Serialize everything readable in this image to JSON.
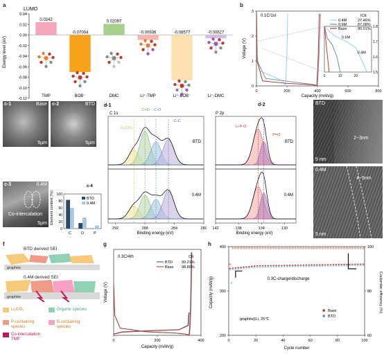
{
  "panel_labels": {
    "a": "a",
    "b": "b",
    "c1": "c-1",
    "c2": "c-2",
    "c3": "c-3",
    "c4": "c-4",
    "d1": "d-1",
    "d2": "d-2",
    "e": "e",
    "f": "f",
    "g": "g",
    "h": "h"
  },
  "chart_data": [
    {
      "id": "a",
      "type": "bar",
      "title": "LUMO",
      "ylabel": "Energy level (eV)",
      "categories": [
        "TMP",
        "BOB⁻",
        "DMC",
        "Li⁺-TMP",
        "Li⁺-BOB⁻",
        "Li⁺-DMC"
      ],
      "values": [
        0.0242,
        -0.07004,
        0.02097,
        -0.00936,
        -0.08577,
        -0.00627
      ],
      "value_labels": [
        "0.0242",
        "-0.07004",
        "0.02097",
        "-0.00936",
        "-0.08577",
        "-0.00627"
      ],
      "colors": [
        "#f4a6bd",
        "#f7a21b",
        "#a7d08c",
        "#f5b7b1",
        "#fce1b0",
        "#d7bde2"
      ],
      "ylim": [
        -0.12,
        0.04
      ],
      "yticks": [
        "0.04",
        "0.02",
        "0.00",
        "-0.02",
        "-0.04",
        "-0.06",
        "-0.08",
        "-0.10",
        "-0.12"
      ]
    },
    {
      "id": "b",
      "type": "line",
      "title": "0.1C/1st",
      "xlabel": "Capacity (mAh/g)",
      "ylabel": "Voltage (V)",
      "xlim": [
        0,
        800
      ],
      "ylim": [
        0,
        3
      ],
      "xticks": [
        "0",
        "200",
        "400",
        "600",
        "800"
      ],
      "yticks": [
        "0",
        "1",
        "2",
        "3"
      ],
      "legend_title": "ICE",
      "series": [
        {
          "name": "0.4M",
          "ice": "27.46%",
          "color": "#9fd0e5"
        },
        {
          "name": "0.6M",
          "ice": "87.08%",
          "color": "#6e8fa8"
        },
        {
          "name": "Base",
          "ice": "90.01%",
          "color": "#c0392b"
        }
      ],
      "inset": {
        "xlim": [
          0,
          30
        ],
        "ylim": [
          1.5,
          1.8
        ],
        "xticks": [
          "0",
          "10",
          "20"
        ],
        "yticks": [
          "1.5",
          "1.6",
          "1.7",
          "1.8"
        ],
        "annotations": [
          "0.6M",
          "0.4M"
        ]
      }
    },
    {
      "id": "c4",
      "type": "bar",
      "xlabel": "",
      "ylabel": "Element content (%)",
      "categories": [
        "C",
        "O",
        "P"
      ],
      "series": [
        {
          "name": "BTD",
          "values": [
            83,
            16,
            0
          ],
          "color": "#2e4a62"
        },
        {
          "name": "0.4M",
          "values": [
            60,
            32,
            9
          ],
          "color": "#a9c7de"
        }
      ],
      "ylim": [
        0,
        100
      ],
      "yticks": [
        "0",
        "20",
        "40",
        "60",
        "80",
        "100"
      ]
    },
    {
      "id": "d1",
      "type": "line",
      "title": "C 1s",
      "xlabel": "Binding energy (eV)",
      "xlim": [
        292,
        280
      ],
      "xticks": [
        "292",
        "288",
        "284",
        "280"
      ],
      "peaks": [
        "Li₂CO₃",
        "C=O",
        "C-O",
        "C-C"
      ],
      "samples": [
        "BTD",
        "0.4M"
      ]
    },
    {
      "id": "d2",
      "type": "line",
      "title": "P 2p",
      "xlabel": "Binding energy (eV)",
      "xlim": [
        142,
        130
      ],
      "xticks": [
        "142",
        "138",
        "134",
        "130"
      ],
      "peaks": [
        "Li-P-O",
        "P=O"
      ],
      "samples": [
        "BTD",
        "0.4M"
      ]
    },
    {
      "id": "g",
      "type": "line",
      "title": "0.3C/4th",
      "xlabel": "Capacity (mAh/g)",
      "ylabel": "Voltage (V)",
      "xlim": [
        0,
        400
      ],
      "xticks": [
        "0",
        "200",
        "400"
      ],
      "legend_title": "CE",
      "series": [
        {
          "name": "BTD",
          "ce": "99.21%",
          "color": "#2e5f8a"
        },
        {
          "name": "Base",
          "ce": "98.86%",
          "color": "#c0392b"
        }
      ]
    },
    {
      "id": "h",
      "type": "scatter",
      "xlabel": "Cycle number",
      "ylabel": "Capacity (mAh/g)",
      "ylabel2": "Coulombic efficiency (%)",
      "xlim": [
        0,
        100
      ],
      "ylim": [
        200,
        400
      ],
      "ylim2": [
        60,
        100
      ],
      "xticks": [
        "0",
        "20",
        "40",
        "60",
        "80",
        "100"
      ],
      "yticks": [
        "200",
        "300",
        "400"
      ],
      "yticks2": [
        "60",
        "80",
        "100"
      ],
      "annotation": "0.3C-charge/discharge",
      "note": "graphite||Li, 25℃",
      "series": [
        {
          "name": "Base",
          "color": "#c0392b"
        },
        {
          "name": "BTD",
          "color": "#5b8db8"
        }
      ]
    }
  ],
  "c_images": {
    "c1": "Base",
    "c2": "BTD",
    "c3": "0.4M",
    "c3_text": "Co-intercalation",
    "scale": "5µm"
  },
  "e_images": {
    "top": "BTD",
    "top_thickness": "2~3nm",
    "bottom": "0.4M",
    "bottom_thickness": "4~5nm",
    "scale": "5 nm"
  },
  "f_schematic": {
    "title1": "BTD derived SEI",
    "title2": "0.4M derived SEI",
    "graphite": "graphite",
    "legend": [
      {
        "name": "Li₂CO₃",
        "color": "#f7c97a"
      },
      {
        "name": "Organic species",
        "color": "#8fd1b5"
      },
      {
        "name": "P-containing species",
        "color": "#f09a8a"
      },
      {
        "name": "B-containing species",
        "color": "#f7a1c4"
      },
      {
        "name": "Co-intercalation TMP",
        "color": "#c2185b"
      }
    ]
  }
}
